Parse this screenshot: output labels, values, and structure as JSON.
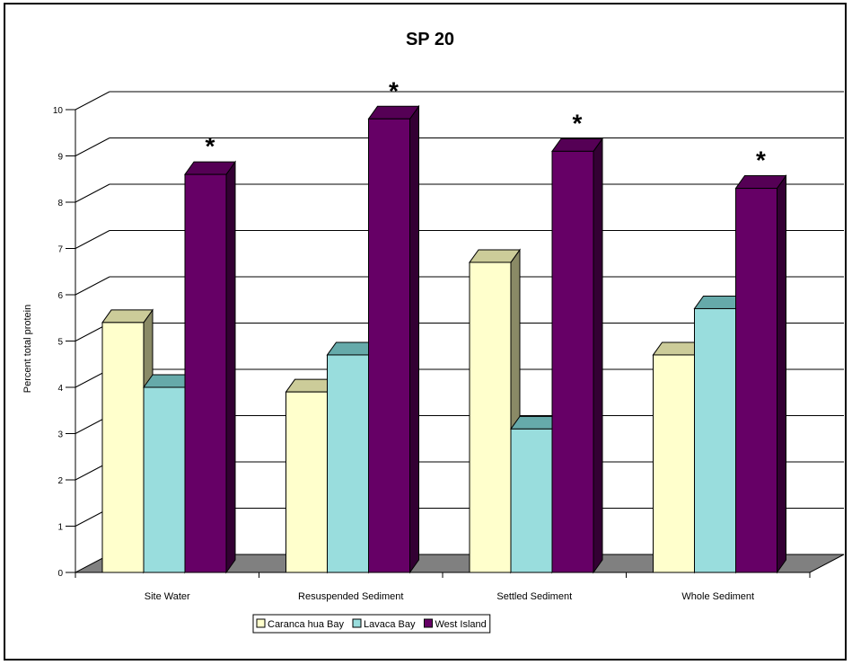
{
  "chart_data": {
    "type": "bar",
    "title": "SP 20",
    "xlabel": "",
    "ylabel": "Percent total protein",
    "ylim": [
      0,
      10
    ],
    "yticks": [
      "0",
      "1",
      "2",
      "3",
      "4",
      "5",
      "6",
      "7",
      "8",
      "9",
      "10"
    ],
    "categories": [
      "Site Water",
      "Resuspended Sediment",
      "Settled Sediment",
      "Whole Sediment"
    ],
    "series": [
      {
        "name": "Caranca hua Bay",
        "values": [
          5.4,
          3.9,
          6.7,
          4.7
        ]
      },
      {
        "name": "Lavaca Bay",
        "values": [
          4.0,
          4.7,
          3.1,
          5.7
        ]
      },
      {
        "name": "West Island",
        "values": [
          8.6,
          9.8,
          9.1,
          8.3
        ]
      }
    ],
    "annotations": [
      "*",
      "*",
      "*",
      "*"
    ],
    "grid": true,
    "style": "3d",
    "legend_position": "bottom",
    "colors": {
      "series_front": [
        "#ffffcc",
        "#99dddd",
        "#660066"
      ],
      "series_side": [
        "#8a8a66",
        "#3a8888",
        "#330033"
      ],
      "series_top": [
        "#cccc99",
        "#66aaaa",
        "#550055"
      ],
      "floor": "#808080"
    }
  }
}
